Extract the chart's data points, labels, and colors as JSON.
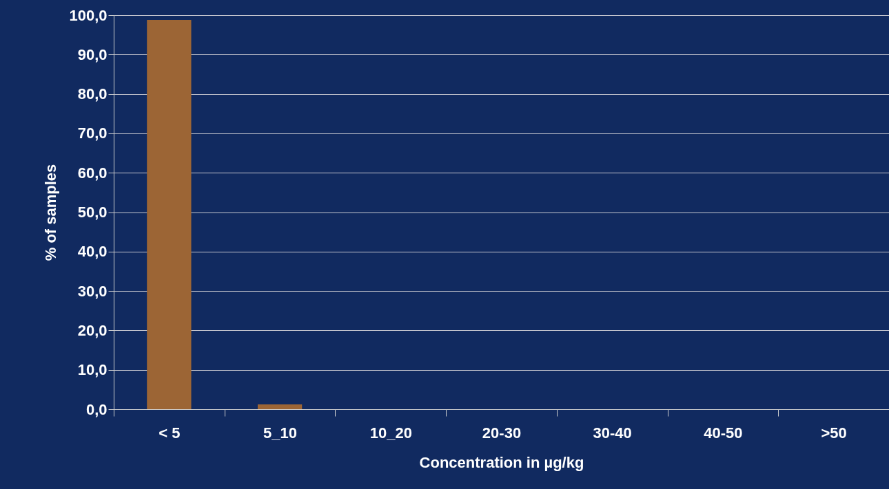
{
  "chart_data": {
    "type": "bar",
    "xlabel": "Concentration in µg/kg",
    "ylabel": "% of samples",
    "categories": [
      "< 5",
      "5_10",
      "10_20",
      "20-30",
      "30-40",
      "40-50",
      ">50"
    ],
    "values": [
      98.8,
      1.2,
      0,
      0,
      0,
      0,
      0
    ],
    "color": "#9c6535",
    "ylim": [
      0,
      100
    ],
    "yticks": [
      {
        "value": 0,
        "label": "0,0"
      },
      {
        "value": 10,
        "label": "10,0"
      },
      {
        "value": 20,
        "label": "20,0"
      },
      {
        "value": 30,
        "label": "30,0"
      },
      {
        "value": 40,
        "label": "40,0"
      },
      {
        "value": 50,
        "label": "50,0"
      },
      {
        "value": 60,
        "label": "60,0"
      },
      {
        "value": 70,
        "label": "70,0"
      },
      {
        "value": 80,
        "label": "80,0"
      },
      {
        "value": 90,
        "label": "90,0"
      },
      {
        "value": 100,
        "label": "100,0"
      }
    ],
    "grid": "y"
  }
}
